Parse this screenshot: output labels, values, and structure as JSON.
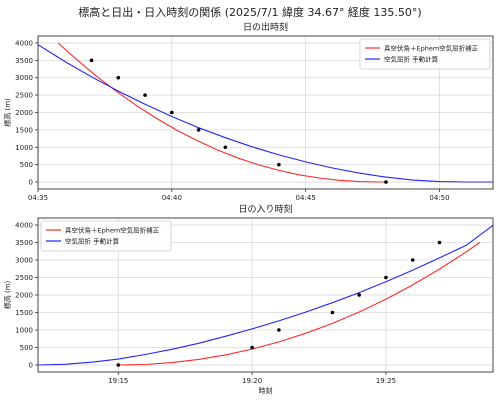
{
  "figure": {
    "title": "標高と日出・日入時刻の関係 (2025/7/1 緯度 34.67° 経度 135.50°)"
  },
  "chart_data": [
    {
      "type": "line",
      "title": "日の出時刻",
      "xlabel": "",
      "ylabel": "標高 (m)",
      "x_unit": "time (HH:MM:SS)",
      "xlim": [
        "04:35:00",
        "04:52:00"
      ],
      "ylim": [
        -200,
        4200
      ],
      "x_ticks": [
        "04:35",
        "04:40",
        "04:45",
        "04:50"
      ],
      "y_ticks": [
        0,
        500,
        1000,
        1500,
        2000,
        2500,
        3000,
        3500,
        4000
      ],
      "grid": true,
      "legend_position": "top-right",
      "series": [
        {
          "name": "真空伏角＋Ephem空気屈折補正",
          "kind": "line",
          "color": "#ff2a2a",
          "x": [
            "04:35:45",
            "04:36:30",
            "04:37:15",
            "04:38:00",
            "04:38:45",
            "04:39:30",
            "04:40:15",
            "04:41:00",
            "04:41:45",
            "04:42:30",
            "04:43:15",
            "04:44:00",
            "04:44:45",
            "04:45:30",
            "04:46:15",
            "04:47:00",
            "04:47:45",
            "04:48:00"
          ],
          "y": [
            4000,
            3486,
            3005,
            2568,
            2163,
            1798,
            1465,
            1171,
            908,
            684,
            492,
            334,
            208,
            115,
            50,
            13,
            0,
            0
          ]
        },
        {
          "name": "空気屈折 手動計算",
          "kind": "line",
          "color": "#2323ff",
          "x": [
            "04:35:00",
            "04:36:00",
            "04:37:00",
            "04:38:00",
            "04:39:00",
            "04:40:00",
            "04:41:00",
            "04:42:00",
            "04:43:00",
            "04:44:00",
            "04:45:00",
            "04:46:00",
            "04:47:00",
            "04:48:00",
            "04:49:00",
            "04:50:00",
            "04:51:00",
            "04:52:00"
          ],
          "y": [
            3950,
            3467,
            3027,
            2616,
            2235,
            1884,
            1564,
            1274,
            1014,
            782,
            578,
            404,
            258,
            141,
            55,
            12,
            0,
            0
          ]
        },
        {
          "name": "",
          "kind": "scatter",
          "color": "#000000",
          "x": [
            "04:37:00",
            "04:38:00",
            "04:39:00",
            "04:40:00",
            "04:41:00",
            "04:42:00",
            "04:44:00",
            "04:48:00"
          ],
          "y": [
            3500,
            3000,
            2500,
            2000,
            1500,
            1000,
            500,
            0
          ]
        }
      ]
    },
    {
      "type": "line",
      "title": "日の入り時刻",
      "xlabel": "時刻",
      "ylabel": "標高 (m)",
      "x_unit": "time (HH:MM:SS)",
      "xlim": [
        "19:12:00",
        "19:29:00"
      ],
      "ylim": [
        -200,
        4200
      ],
      "x_ticks": [
        "19:15",
        "19:20",
        "19:25"
      ],
      "y_ticks": [
        0,
        500,
        1000,
        1500,
        2000,
        2500,
        3000,
        3500,
        4000
      ],
      "grid": true,
      "legend_position": "top-left",
      "series": [
        {
          "name": "真空伏角＋Ephem空気屈折補正",
          "kind": "line",
          "color": "#ff2a2a",
          "x": [
            "19:15:00",
            "19:16:00",
            "19:17:00",
            "19:18:00",
            "19:19:00",
            "19:20:00",
            "19:21:00",
            "19:22:00",
            "19:23:00",
            "19:24:00",
            "19:25:00",
            "19:26:00",
            "19:27:00",
            "19:28:00",
            "19:28:30"
          ],
          "y": [
            0,
            15,
            70,
            160,
            290,
            455,
            660,
            905,
            1190,
            1515,
            1880,
            2290,
            2740,
            3230,
            3500
          ]
        },
        {
          "name": "空気屈折 手動計算",
          "kind": "line",
          "color": "#2323ff",
          "x": [
            "19:12:00",
            "19:13:00",
            "19:14:00",
            "19:15:00",
            "19:16:00",
            "19:17:00",
            "19:18:00",
            "19:19:00",
            "19:20:00",
            "19:21:00",
            "19:22:00",
            "19:23:00",
            "19:24:00",
            "19:25:00",
            "19:26:00",
            "19:27:00",
            "19:28:00",
            "19:29:00"
          ],
          "y": [
            0,
            20,
            80,
            170,
            300,
            450,
            620,
            820,
            1030,
            1260,
            1510,
            1780,
            2070,
            2380,
            2710,
            3060,
            3420,
            3990
          ]
        },
        {
          "name": "",
          "kind": "scatter",
          "color": "#000000",
          "x": [
            "19:15:00",
            "19:20:00",
            "19:21:00",
            "19:23:00",
            "19:24:00",
            "19:25:00",
            "19:26:00",
            "19:27:00"
          ],
          "y": [
            0,
            500,
            1000,
            1500,
            2000,
            2500,
            3000,
            3500
          ]
        }
      ]
    }
  ]
}
